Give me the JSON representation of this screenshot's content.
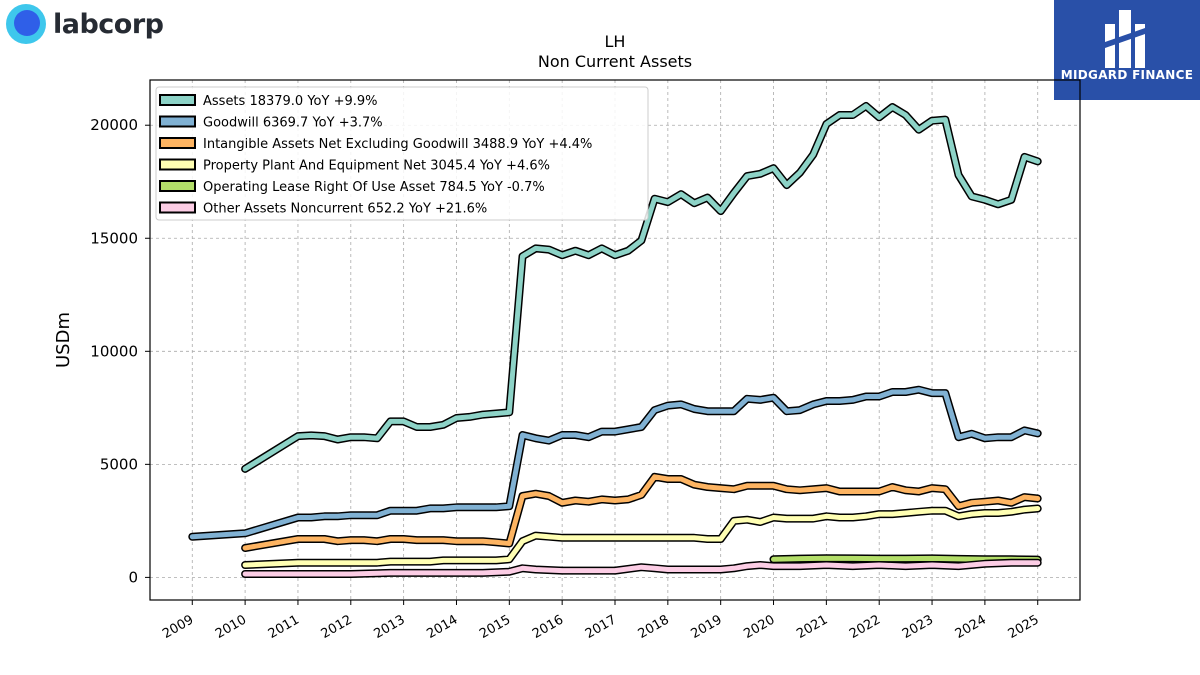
{
  "header": {
    "brand": "labcorp",
    "badge": "MIDGARD FINANCE"
  },
  "chart_data": {
    "type": "line",
    "title": "LH",
    "subtitle": "Non Current  Assets",
    "xlabel": "",
    "ylabel": "USDm",
    "ylim": [
      -1000,
      22000
    ],
    "xlim": [
      2008.2,
      2025.8
    ],
    "grid": true,
    "legend_position": "upper-left",
    "yticks": [
      0,
      5000,
      10000,
      15000,
      20000
    ],
    "yticklabels": [
      "0",
      "5000",
      "10000",
      "15000",
      "20000"
    ],
    "xticks": [
      2009,
      2010,
      2011,
      2012,
      2013,
      2014,
      2015,
      2016,
      2017,
      2018,
      2019,
      2020,
      2021,
      2022,
      2023,
      2024,
      2025
    ],
    "xticklabels": [
      "2009",
      "2010",
      "2011",
      "2012",
      "2013",
      "2014",
      "2015",
      "2016",
      "2017",
      "2018",
      "2019",
      "2020",
      "2021",
      "2022",
      "2023",
      "2024",
      "2025"
    ],
    "series": [
      {
        "name": "Assets  18379.0 YoY +9.9%",
        "color": "#8dd3c7",
        "points": [
          [
            2010.0,
            4800
          ],
          [
            2011.0,
            6250
          ],
          [
            2011.25,
            6280
          ],
          [
            2011.5,
            6250
          ],
          [
            2011.75,
            6100
          ],
          [
            2012.0,
            6200
          ],
          [
            2012.25,
            6200
          ],
          [
            2012.5,
            6150
          ],
          [
            2012.75,
            6900
          ],
          [
            2013.0,
            6900
          ],
          [
            2013.25,
            6650
          ],
          [
            2013.5,
            6650
          ],
          [
            2013.75,
            6750
          ],
          [
            2014.0,
            7050
          ],
          [
            2014.25,
            7100
          ],
          [
            2014.5,
            7200
          ],
          [
            2014.75,
            7250
          ],
          [
            2015.0,
            7300
          ],
          [
            2015.25,
            14200
          ],
          [
            2015.5,
            14550
          ],
          [
            2015.75,
            14500
          ],
          [
            2016.0,
            14250
          ],
          [
            2016.25,
            14450
          ],
          [
            2016.5,
            14250
          ],
          [
            2016.75,
            14550
          ],
          [
            2017.0,
            14250
          ],
          [
            2017.25,
            14450
          ],
          [
            2017.5,
            14900
          ],
          [
            2017.75,
            16750
          ],
          [
            2018.0,
            16600
          ],
          [
            2018.25,
            16950
          ],
          [
            2018.5,
            16550
          ],
          [
            2018.75,
            16800
          ],
          [
            2019.0,
            16200
          ],
          [
            2019.25,
            17000
          ],
          [
            2019.5,
            17750
          ],
          [
            2019.75,
            17850
          ],
          [
            2020.0,
            18100
          ],
          [
            2020.25,
            17350
          ],
          [
            2020.5,
            17900
          ],
          [
            2020.75,
            18700
          ],
          [
            2021.0,
            20050
          ],
          [
            2021.25,
            20450
          ],
          [
            2021.5,
            20450
          ],
          [
            2021.75,
            20850
          ],
          [
            2022.0,
            20350
          ],
          [
            2022.25,
            20800
          ],
          [
            2022.5,
            20450
          ],
          [
            2022.75,
            19800
          ],
          [
            2023.0,
            20200
          ],
          [
            2023.25,
            20250
          ],
          [
            2023.5,
            17800
          ],
          [
            2023.75,
            16850
          ],
          [
            2024.0,
            16700
          ],
          [
            2024.25,
            16500
          ],
          [
            2024.5,
            16700
          ],
          [
            2024.75,
            18600
          ],
          [
            2025.0,
            18400
          ]
        ]
      },
      {
        "name": "Goodwill  6369.7 YoY +3.7%",
        "color": "#80b1d3",
        "points": [
          [
            2009.0,
            1800
          ],
          [
            2010.0,
            1950
          ],
          [
            2011.0,
            2650
          ],
          [
            2011.25,
            2650
          ],
          [
            2011.5,
            2700
          ],
          [
            2011.75,
            2700
          ],
          [
            2012.0,
            2750
          ],
          [
            2012.25,
            2750
          ],
          [
            2012.5,
            2750
          ],
          [
            2012.75,
            2950
          ],
          [
            2013.0,
            2950
          ],
          [
            2013.25,
            2950
          ],
          [
            2013.5,
            3050
          ],
          [
            2013.75,
            3050
          ],
          [
            2014.0,
            3100
          ],
          [
            2014.25,
            3100
          ],
          [
            2014.5,
            3100
          ],
          [
            2014.75,
            3100
          ],
          [
            2015.0,
            3150
          ],
          [
            2015.25,
            6300
          ],
          [
            2015.5,
            6150
          ],
          [
            2015.75,
            6050
          ],
          [
            2016.0,
            6300
          ],
          [
            2016.25,
            6300
          ],
          [
            2016.5,
            6200
          ],
          [
            2016.75,
            6450
          ],
          [
            2017.0,
            6450
          ],
          [
            2017.25,
            6550
          ],
          [
            2017.5,
            6650
          ],
          [
            2017.75,
            7400
          ],
          [
            2018.0,
            7600
          ],
          [
            2018.25,
            7650
          ],
          [
            2018.5,
            7450
          ],
          [
            2018.75,
            7350
          ],
          [
            2019.0,
            7350
          ],
          [
            2019.25,
            7350
          ],
          [
            2019.5,
            7900
          ],
          [
            2019.75,
            7850
          ],
          [
            2020.0,
            7950
          ],
          [
            2020.25,
            7350
          ],
          [
            2020.5,
            7400
          ],
          [
            2020.75,
            7650
          ],
          [
            2021.0,
            7800
          ],
          [
            2021.25,
            7800
          ],
          [
            2021.5,
            7850
          ],
          [
            2021.75,
            8000
          ],
          [
            2022.0,
            8000
          ],
          [
            2022.25,
            8200
          ],
          [
            2022.5,
            8200
          ],
          [
            2022.75,
            8300
          ],
          [
            2023.0,
            8150
          ],
          [
            2023.25,
            8150
          ],
          [
            2023.5,
            6200
          ],
          [
            2023.75,
            6350
          ],
          [
            2024.0,
            6150
          ],
          [
            2024.25,
            6200
          ],
          [
            2024.5,
            6200
          ],
          [
            2024.75,
            6500
          ],
          [
            2025.0,
            6370
          ]
        ]
      },
      {
        "name": "Intangible Assets Net Excluding Goodwill  3488.9 YoY +4.4%",
        "color": "#fdb462",
        "points": [
          [
            2010.0,
            1300
          ],
          [
            2011.0,
            1700
          ],
          [
            2011.25,
            1700
          ],
          [
            2011.5,
            1700
          ],
          [
            2011.75,
            1600
          ],
          [
            2012.0,
            1650
          ],
          [
            2012.25,
            1650
          ],
          [
            2012.5,
            1600
          ],
          [
            2012.75,
            1700
          ],
          [
            2013.0,
            1700
          ],
          [
            2013.25,
            1650
          ],
          [
            2013.5,
            1650
          ],
          [
            2013.75,
            1650
          ],
          [
            2014.0,
            1600
          ],
          [
            2014.25,
            1600
          ],
          [
            2014.5,
            1600
          ],
          [
            2014.75,
            1550
          ],
          [
            2015.0,
            1500
          ],
          [
            2015.25,
            3600
          ],
          [
            2015.5,
            3700
          ],
          [
            2015.75,
            3600
          ],
          [
            2016.0,
            3300
          ],
          [
            2016.25,
            3400
          ],
          [
            2016.5,
            3350
          ],
          [
            2016.75,
            3450
          ],
          [
            2017.0,
            3400
          ],
          [
            2017.25,
            3450
          ],
          [
            2017.5,
            3650
          ],
          [
            2017.75,
            4450
          ],
          [
            2018.0,
            4350
          ],
          [
            2018.25,
            4350
          ],
          [
            2018.5,
            4100
          ],
          [
            2018.75,
            4000
          ],
          [
            2019.0,
            3950
          ],
          [
            2019.25,
            3900
          ],
          [
            2019.5,
            4050
          ],
          [
            2019.75,
            4050
          ],
          [
            2020.0,
            4050
          ],
          [
            2020.25,
            3900
          ],
          [
            2020.5,
            3850
          ],
          [
            2020.75,
            3900
          ],
          [
            2021.0,
            3950
          ],
          [
            2021.25,
            3800
          ],
          [
            2021.5,
            3800
          ],
          [
            2021.75,
            3800
          ],
          [
            2022.0,
            3800
          ],
          [
            2022.25,
            4000
          ],
          [
            2022.5,
            3850
          ],
          [
            2022.75,
            3800
          ],
          [
            2023.0,
            3950
          ],
          [
            2023.25,
            3900
          ],
          [
            2023.5,
            3150
          ],
          [
            2023.75,
            3300
          ],
          [
            2024.0,
            3350
          ],
          [
            2024.25,
            3400
          ],
          [
            2024.5,
            3300
          ],
          [
            2024.75,
            3550
          ],
          [
            2025.0,
            3490
          ]
        ]
      },
      {
        "name": "Property Plant And Equipment Net  3045.4 YoY +4.6%",
        "color": "#ffffb3",
        "points": [
          [
            2010.0,
            550
          ],
          [
            2011.0,
            650
          ],
          [
            2011.25,
            650
          ],
          [
            2011.5,
            650
          ],
          [
            2011.75,
            650
          ],
          [
            2012.0,
            650
          ],
          [
            2012.25,
            650
          ],
          [
            2012.5,
            650
          ],
          [
            2012.75,
            700
          ],
          [
            2013.0,
            700
          ],
          [
            2013.25,
            700
          ],
          [
            2013.5,
            700
          ],
          [
            2013.75,
            750
          ],
          [
            2014.0,
            750
          ],
          [
            2014.25,
            750
          ],
          [
            2014.5,
            750
          ],
          [
            2014.75,
            750
          ],
          [
            2015.0,
            800
          ],
          [
            2015.25,
            1600
          ],
          [
            2015.5,
            1850
          ],
          [
            2015.75,
            1800
          ],
          [
            2016.0,
            1750
          ],
          [
            2016.25,
            1750
          ],
          [
            2016.5,
            1750
          ],
          [
            2016.75,
            1750
          ],
          [
            2017.0,
            1750
          ],
          [
            2017.25,
            1750
          ],
          [
            2017.5,
            1750
          ],
          [
            2017.75,
            1750
          ],
          [
            2018.0,
            1750
          ],
          [
            2018.25,
            1750
          ],
          [
            2018.5,
            1750
          ],
          [
            2018.75,
            1700
          ],
          [
            2019.0,
            1700
          ],
          [
            2019.25,
            2500
          ],
          [
            2019.5,
            2550
          ],
          [
            2019.75,
            2450
          ],
          [
            2020.0,
            2650
          ],
          [
            2020.25,
            2600
          ],
          [
            2020.5,
            2600
          ],
          [
            2020.75,
            2600
          ],
          [
            2021.0,
            2700
          ],
          [
            2021.25,
            2650
          ],
          [
            2021.5,
            2650
          ],
          [
            2021.75,
            2700
          ],
          [
            2022.0,
            2800
          ],
          [
            2022.25,
            2800
          ],
          [
            2022.5,
            2850
          ],
          [
            2022.75,
            2900
          ],
          [
            2023.0,
            2950
          ],
          [
            2023.25,
            2950
          ],
          [
            2023.5,
            2700
          ],
          [
            2023.75,
            2800
          ],
          [
            2024.0,
            2850
          ],
          [
            2024.25,
            2850
          ],
          [
            2024.5,
            2900
          ],
          [
            2024.75,
            3000
          ],
          [
            2025.0,
            3045
          ]
        ]
      },
      {
        "name": "Operating Lease Right Of Use Asset  784.5 YoY -0.7%",
        "color": "#b3de69",
        "points": [
          [
            2020.0,
            800
          ],
          [
            2020.5,
            830
          ],
          [
            2021.0,
            850
          ],
          [
            2021.5,
            840
          ],
          [
            2022.0,
            830
          ],
          [
            2022.5,
            830
          ],
          [
            2023.0,
            840
          ],
          [
            2023.5,
            820
          ],
          [
            2024.0,
            800
          ],
          [
            2024.5,
            800
          ],
          [
            2025.0,
            785
          ]
        ]
      },
      {
        "name": "Other Assets Noncurrent  652.2 YoY +21.6%",
        "color": "#fccde5",
        "points": [
          [
            2010.0,
            150
          ],
          [
            2011.0,
            150
          ],
          [
            2012.0,
            150
          ],
          [
            2012.75,
            200
          ],
          [
            2013.5,
            200
          ],
          [
            2014.0,
            200
          ],
          [
            2014.5,
            200
          ],
          [
            2015.0,
            250
          ],
          [
            2015.25,
            400
          ],
          [
            2015.5,
            350
          ],
          [
            2016.0,
            300
          ],
          [
            2016.5,
            300
          ],
          [
            2017.0,
            300
          ],
          [
            2017.5,
            450
          ],
          [
            2017.75,
            400
          ],
          [
            2018.0,
            350
          ],
          [
            2018.5,
            350
          ],
          [
            2019.0,
            350
          ],
          [
            2019.25,
            400
          ],
          [
            2019.5,
            500
          ],
          [
            2019.75,
            550
          ],
          [
            2020.0,
            500
          ],
          [
            2020.5,
            500
          ],
          [
            2021.0,
            550
          ],
          [
            2021.5,
            500
          ],
          [
            2022.0,
            550
          ],
          [
            2022.5,
            500
          ],
          [
            2023.0,
            550
          ],
          [
            2023.5,
            500
          ],
          [
            2024.0,
            600
          ],
          [
            2024.5,
            650
          ],
          [
            2025.0,
            650
          ]
        ]
      }
    ]
  }
}
